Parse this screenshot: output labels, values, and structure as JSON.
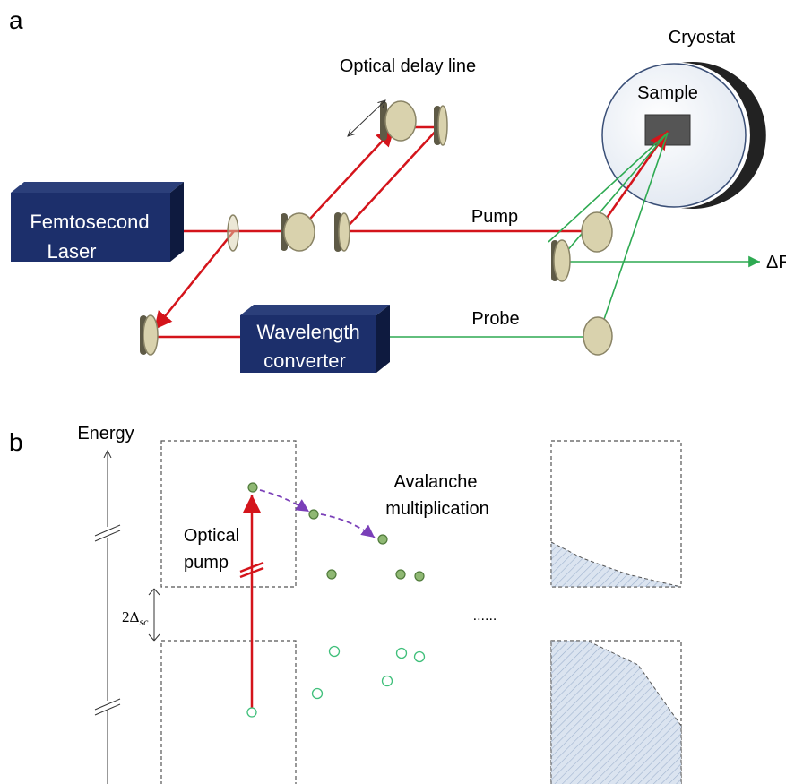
{
  "panel_a": {
    "label": "a",
    "delay_line": "Optical delay line",
    "cryostat": "Cryostat",
    "sample": "Sample",
    "laser": [
      "Femtosecond",
      "Laser"
    ],
    "pump": "Pump",
    "signal": "ΔR/R",
    "probe": "Probe",
    "converter": [
      "Wavelength",
      "converter"
    ]
  },
  "panel_b": {
    "label": "b",
    "energy": "Energy",
    "gap": "2Δ",
    "gap_sub": "sc",
    "optical_pump": [
      "Optical",
      "pump"
    ],
    "avalanche": [
      "Avalanche",
      "multiplication"
    ],
    "ellipsis": "......"
  }
}
